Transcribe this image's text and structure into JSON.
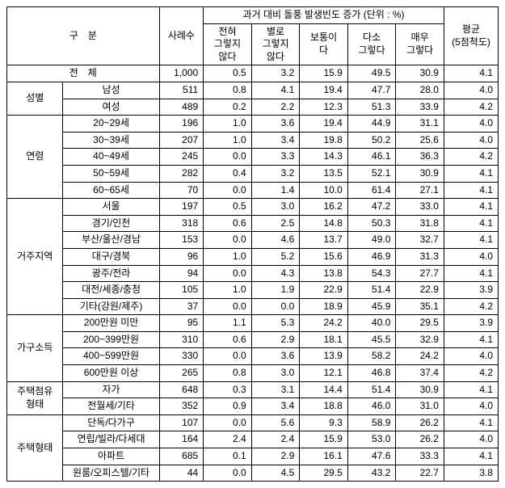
{
  "header": {
    "category": "구　분",
    "cases": "사례수",
    "group_title": "과거 대비 돌풍 발생빈도 증가 (단위 : %)",
    "c1": "전혀\n그렇지\n않다",
    "c2": "별로\n그렇지\n않다",
    "c3": "보통이\n다",
    "c4": "다소\n그렇다",
    "c5": "매우\n그렇다",
    "avg": "평균\n(5점척도)"
  },
  "total": {
    "label": "전　체",
    "n": "1,000",
    "v1": "0.5",
    "v2": "3.2",
    "v3": "15.9",
    "v4": "49.5",
    "v5": "30.9",
    "avg": "4.1"
  },
  "groups": [
    {
      "name": "성별",
      "rows": [
        {
          "label": "남성",
          "n": "511",
          "v1": "0.8",
          "v2": "4.1",
          "v3": "19.4",
          "v4": "47.7",
          "v5": "28.0",
          "avg": "4.0"
        },
        {
          "label": "여성",
          "n": "489",
          "v1": "0.2",
          "v2": "2.2",
          "v3": "12.3",
          "v4": "51.3",
          "v5": "33.9",
          "avg": "4.2"
        }
      ]
    },
    {
      "name": "연령",
      "rows": [
        {
          "label": "20~29세",
          "n": "196",
          "v1": "1.0",
          "v2": "3.6",
          "v3": "19.4",
          "v4": "44.9",
          "v5": "31.1",
          "avg": "4.0"
        },
        {
          "label": "30~39세",
          "n": "207",
          "v1": "1.0",
          "v2": "3.4",
          "v3": "19.8",
          "v4": "50.2",
          "v5": "25.6",
          "avg": "4.0"
        },
        {
          "label": "40~49세",
          "n": "245",
          "v1": "0.0",
          "v2": "3.3",
          "v3": "14.3",
          "v4": "46.1",
          "v5": "36.3",
          "avg": "4.2"
        },
        {
          "label": "50~59세",
          "n": "282",
          "v1": "0.4",
          "v2": "3.2",
          "v3": "13.5",
          "v4": "52.1",
          "v5": "30.9",
          "avg": "4.1"
        },
        {
          "label": "60~65세",
          "n": "70",
          "v1": "0.0",
          "v2": "1.4",
          "v3": "10.0",
          "v4": "61.4",
          "v5": "27.1",
          "avg": "4.1"
        }
      ]
    },
    {
      "name": "거주지역",
      "rows": [
        {
          "label": "서울",
          "n": "197",
          "v1": "0.5",
          "v2": "3.0",
          "v3": "16.2",
          "v4": "47.2",
          "v5": "33.0",
          "avg": "4.1"
        },
        {
          "label": "경기/인천",
          "n": "318",
          "v1": "0.6",
          "v2": "2.5",
          "v3": "14.8",
          "v4": "50.3",
          "v5": "31.8",
          "avg": "4.1"
        },
        {
          "label": "부산/울산/경남",
          "n": "153",
          "v1": "0.0",
          "v2": "4.6",
          "v3": "13.7",
          "v4": "49.0",
          "v5": "32.7",
          "avg": "4.1"
        },
        {
          "label": "대구/경북",
          "n": "96",
          "v1": "1.0",
          "v2": "5.2",
          "v3": "15.6",
          "v4": "46.9",
          "v5": "31.3",
          "avg": "4.0"
        },
        {
          "label": "광주/전라",
          "n": "94",
          "v1": "0.0",
          "v2": "4.3",
          "v3": "13.8",
          "v4": "54.3",
          "v5": "27.7",
          "avg": "4.1"
        },
        {
          "label": "대전/세종/충청",
          "n": "105",
          "v1": "1.0",
          "v2": "1.9",
          "v3": "22.9",
          "v4": "51.4",
          "v5": "22.9",
          "avg": "3.9"
        },
        {
          "label": "기타(강원/제주)",
          "n": "37",
          "v1": "0.0",
          "v2": "0.0",
          "v3": "18.9",
          "v4": "45.9",
          "v5": "35.1",
          "avg": "4.2"
        }
      ]
    },
    {
      "name": "가구소득",
      "rows": [
        {
          "label": "200만원 미만",
          "n": "95",
          "v1": "1.1",
          "v2": "5.3",
          "v3": "24.2",
          "v4": "40.0",
          "v5": "29.5",
          "avg": "3.9"
        },
        {
          "label": "200~399만원",
          "n": "310",
          "v1": "0.6",
          "v2": "2.9",
          "v3": "18.1",
          "v4": "45.5",
          "v5": "32.9",
          "avg": "4.1"
        },
        {
          "label": "400~599만원",
          "n": "330",
          "v1": "0.0",
          "v2": "3.6",
          "v3": "13.9",
          "v4": "58.2",
          "v5": "24.2",
          "avg": "4.0"
        },
        {
          "label": "600만원 이상",
          "n": "265",
          "v1": "0.8",
          "v2": "3.0",
          "v3": "12.1",
          "v4": "46.8",
          "v5": "37.4",
          "avg": "4.2"
        }
      ]
    },
    {
      "name": "주택점유\n형태",
      "rows": [
        {
          "label": "자가",
          "n": "648",
          "v1": "0.3",
          "v2": "3.1",
          "v3": "14.4",
          "v4": "51.4",
          "v5": "30.9",
          "avg": "4.1"
        },
        {
          "label": "전월세/기타",
          "n": "352",
          "v1": "0.9",
          "v2": "3.4",
          "v3": "18.8",
          "v4": "46.0",
          "v5": "31.0",
          "avg": "4.0"
        }
      ]
    },
    {
      "name": "주택형태",
      "rows": [
        {
          "label": "단독/다가구",
          "n": "107",
          "v1": "0.0",
          "v2": "5.6",
          "v3": "9.3",
          "v4": "58.9",
          "v5": "26.2",
          "avg": "4.1"
        },
        {
          "label": "연립/빌라/다세대",
          "n": "164",
          "v1": "2.4",
          "v2": "2.4",
          "v3": "15.9",
          "v4": "53.0",
          "v5": "26.2",
          "avg": "4.0"
        },
        {
          "label": "아파트",
          "n": "685",
          "v1": "0.1",
          "v2": "2.9",
          "v3": "16.1",
          "v4": "47.6",
          "v5": "33.3",
          "avg": "4.1"
        },
        {
          "label": "원룸/오피스텔/기타",
          "n": "44",
          "v1": "0.0",
          "v2": "4.5",
          "v3": "29.5",
          "v4": "43.2",
          "v5": "22.7",
          "avg": "3.8"
        }
      ]
    }
  ]
}
